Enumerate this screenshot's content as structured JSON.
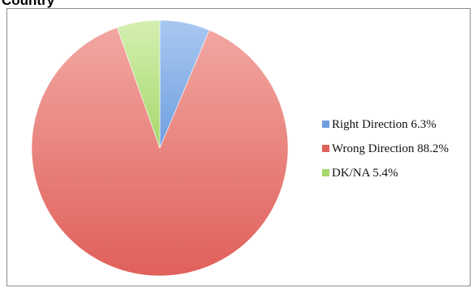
{
  "page": {
    "title": "Country"
  },
  "chart_data": {
    "type": "pie",
    "title": "Country",
    "legend_position": "right",
    "slices": [
      {
        "label": "Right Direction 6.3%",
        "name": "Right Direction",
        "value": 6.3,
        "color": "#6f9fe0",
        "color_light": "#a9c8f0"
      },
      {
        "label": "Wrong Direction 88.2%",
        "name": "Wrong Direction",
        "value": 88.2,
        "color": "#e0605a",
        "color_light": "#f2a7a2"
      },
      {
        "label": "DK/NA  5.4%",
        "name": "DK/NA",
        "value": 5.4,
        "color": "#a6d86a",
        "color_light": "#d4efb2"
      }
    ]
  }
}
